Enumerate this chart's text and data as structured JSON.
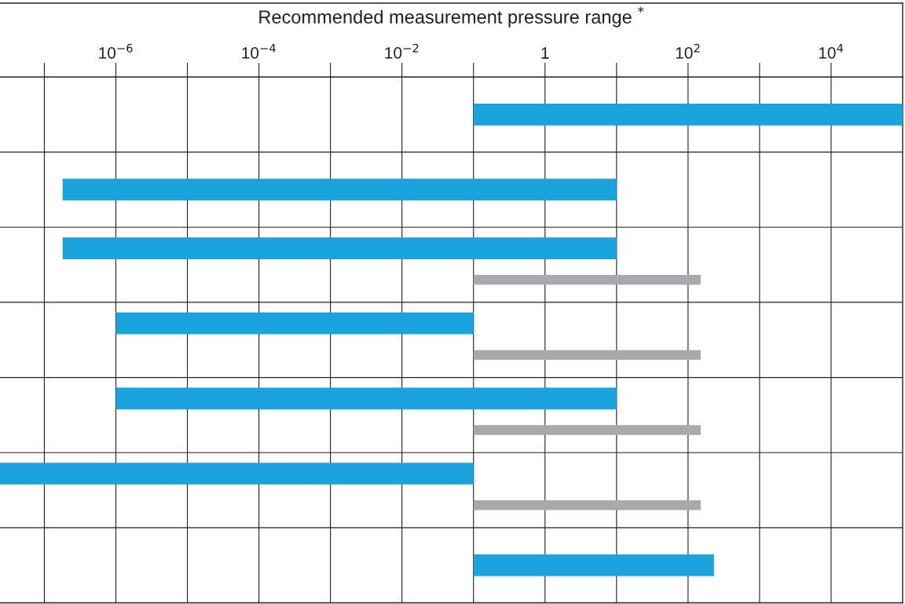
{
  "chart_data": {
    "type": "bar",
    "orientation": "horizontal",
    "xlabel": "Recommended measurement pressure range $^{*}$",
    "categories": [
      null,
      null,
      null,
      null,
      null,
      null,
      null
    ],
    "series": [
      {
        "color": "#1aa3dd",
        "base": [
          0.1,
          1.8e-07,
          1.8e-07,
          1e-06,
          1e-06,
          2.4e-08,
          0.1
        ],
        "values": [
          99999.9,
          9.99999982,
          9.99999982,
          0.099999,
          9.999999,
          0.099999976,
          229.9
        ]
      },
      {
        "color": "#a7a9ac",
        "base": [
          null,
          null,
          0.1,
          0.1,
          0.1,
          0.1,
          null
        ],
        "values": [
          null,
          null,
          149.9,
          149.9,
          149.9,
          149.9,
          null
        ]
      }
    ],
    "log": "x",
    "xlim": [
      2.4e-08,
      100000.0
    ],
    "xticks": [
      {
        "value": 1e-07,
        "label": null
      },
      {
        "value": 1e-06,
        "label": "10$^{−6}$"
      },
      {
        "value": 1e-05,
        "label": null
      },
      {
        "value": 0.0001,
        "label": "10$^{−4}$"
      },
      {
        "value": 0.001,
        "label": null
      },
      {
        "value": 0.01,
        "label": "10$^{−2}$"
      },
      {
        "value": 0.1,
        "label": null
      },
      {
        "value": 1,
        "label": "1"
      },
      {
        "value": 10,
        "label": null
      },
      {
        "value": 100,
        "label": "10$^{2}$"
      },
      {
        "value": 1000,
        "label": null
      },
      {
        "value": 10000,
        "label": "10$^{4}$"
      }
    ],
    "grid": true,
    "tick_labels": "x"
  }
}
